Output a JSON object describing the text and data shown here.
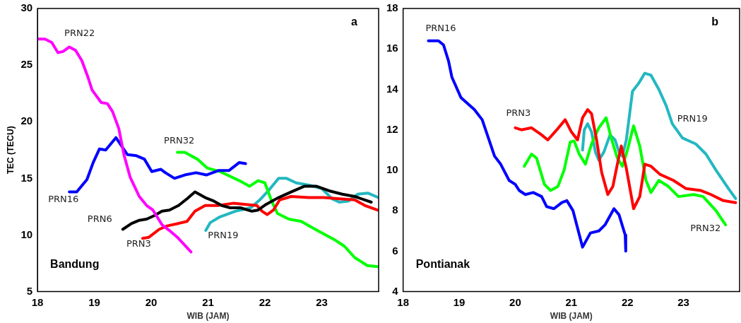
{
  "chart_data": [
    {
      "type": "line",
      "xlabel": "WIB (JAM)",
      "ylabel": "TEC (TECU)",
      "xlim": [
        18,
        24
      ],
      "xticks": [
        18,
        19,
        20,
        21,
        22,
        23
      ],
      "ylim": [
        5,
        30
      ],
      "yticks": [
        5,
        10,
        15,
        20,
        25,
        30
      ],
      "grid": false,
      "legend": false,
      "marker": "none",
      "line_style": "solid",
      "annotations": [
        "a",
        "Bandung"
      ],
      "series": [
        {
          "name": "PRN22",
          "color": "#ff00ff",
          "x": [
            18,
            18.13,
            18.25,
            18.36,
            18.45,
            18.56,
            18.67,
            18.78,
            18.89,
            18.96,
            19.12,
            19.23,
            19.32,
            19.43,
            19.52,
            19.63,
            19.79,
            19.92,
            20.03,
            20.19,
            20.32,
            20.46,
            20.59,
            20.7
          ],
          "values": [
            27.3,
            27.3,
            27,
            26.1,
            26.2,
            26.6,
            26.3,
            25.4,
            23.9,
            22.8,
            21.7,
            21.6,
            20.9,
            19.4,
            17.1,
            15.1,
            13.4,
            12.6,
            12.2,
            10.9,
            10.4,
            9.8,
            9.1,
            8.5
          ]
        },
        {
          "name": "PRN16",
          "color": "#0000ff",
          "x": [
            18.56,
            18.69,
            18.87,
            18.98,
            19.09,
            19.2,
            19.38,
            19.5,
            19.58,
            19.74,
            19.88,
            20.01,
            20.17,
            20.25,
            20.41,
            20.59,
            20.79,
            20.97,
            21.19,
            21.37,
            21.55,
            21.66
          ],
          "values": [
            13.8,
            13.8,
            14.9,
            16.4,
            17.6,
            17.5,
            18.6,
            17.7,
            17.1,
            17,
            16.7,
            15.6,
            15.8,
            15.5,
            15,
            15.3,
            15.5,
            15.3,
            15.7,
            15.7,
            16.4,
            16.3
          ]
        },
        {
          "name": "PRN6",
          "color": "#000000",
          "x": [
            19.5,
            19.65,
            19.79,
            19.92,
            20.05,
            20.19,
            20.32,
            20.48,
            20.63,
            20.77,
            20.95,
            21.1,
            21.24,
            21.39,
            21.57,
            21.77,
            21.88,
            22.02,
            22.24,
            22.46,
            22.69,
            22.91,
            23.13,
            23.36,
            23.58,
            23.87
          ],
          "values": [
            10.5,
            11,
            11.3,
            11.4,
            11.7,
            12.1,
            12.2,
            12.6,
            13.2,
            13.8,
            13.3,
            13,
            12.6,
            12.4,
            12.4,
            12.1,
            12.2,
            12.7,
            13.3,
            13.8,
            14.3,
            14.3,
            13.9,
            13.6,
            13.4,
            12.9
          ]
        },
        {
          "name": "PRN3",
          "color": "#ff0000",
          "x": [
            19.85,
            19.96,
            20.14,
            20.28,
            20.46,
            20.63,
            20.77,
            20.95,
            21.17,
            21.44,
            21.66,
            21.86,
            21.95,
            22.04,
            22.15,
            22.26,
            22.46,
            22.77,
            23.04,
            23.31,
            23.58,
            23.76,
            23.98
          ],
          "values": [
            9.7,
            9.8,
            10.5,
            10.8,
            11,
            11.2,
            12.1,
            12.6,
            12.6,
            12.8,
            12.7,
            12.6,
            12.1,
            11.8,
            12.2,
            13.1,
            13.4,
            13.3,
            13.3,
            13.2,
            13.1,
            12.6,
            12.2
          ]
        },
        {
          "name": "PRN32",
          "color": "#00ff00",
          "x": [
            20.46,
            20.59,
            20.81,
            20.99,
            21.21,
            21.55,
            21.73,
            21.88,
            22,
            22.11,
            22.22,
            22.42,
            22.64,
            22.78,
            22.96,
            23.22,
            23.4,
            23.58,
            23.8,
            23.98
          ],
          "values": [
            17.3,
            17.3,
            16.7,
            15.9,
            15.6,
            14.8,
            14.3,
            14.8,
            14.6,
            13.1,
            11.9,
            11.4,
            11.2,
            10.8,
            10.3,
            9.6,
            9,
            8,
            7.3,
            7.2
          ]
        },
        {
          "name": "PRN19",
          "color": "#22b8c0",
          "x": [
            20.96,
            21.04,
            21.21,
            21.48,
            21.75,
            21.91,
            22.06,
            22.24,
            22.38,
            22.55,
            22.78,
            23,
            23.18,
            23.31,
            23.47,
            23.63,
            23.81,
            24
          ],
          "values": [
            10.4,
            11.1,
            11.6,
            12.1,
            12.4,
            13.1,
            13.9,
            15,
            15,
            14.6,
            14.4,
            14.1,
            13.2,
            12.9,
            13,
            13.6,
            13.7,
            13.3
          ]
        }
      ]
    },
    {
      "type": "line",
      "xlabel": "WIB (JAM)",
      "xlim": [
        18,
        24
      ],
      "xticks": [
        18,
        19,
        20,
        21,
        22,
        23
      ],
      "ylim": [
        4,
        18
      ],
      "yticks": [
        4,
        6,
        8,
        10,
        12,
        14,
        16,
        18
      ],
      "grid": false,
      "legend": false,
      "marker": "none",
      "line_style": "solid",
      "annotations": [
        "b",
        "Pontianak"
      ],
      "series": [
        {
          "name": "PRN16",
          "color": "#0000ff",
          "x": [
            18.45,
            18.63,
            18.72,
            18.81,
            18.87,
            19.03,
            19.27,
            19.41,
            19.52,
            19.63,
            19.74,
            19.89,
            20,
            20.07,
            20.18,
            20.32,
            20.47,
            20.56,
            20.69,
            20.83,
            20.92,
            21.03,
            21.2,
            21.34,
            21.49,
            21.6,
            21.76,
            21.85,
            21.96,
            21.97
          ],
          "values": [
            16.4,
            16.4,
            16.2,
            15.4,
            14.6,
            13.6,
            13,
            12.5,
            11.6,
            10.7,
            10.3,
            9.5,
            9.3,
            9,
            8.8,
            8.9,
            8.7,
            8.2,
            8.1,
            8.4,
            8.5,
            8,
            6.2,
            6.9,
            7,
            7.3,
            8.1,
            7.8,
            6.8,
            6
          ]
        },
        {
          "name": "PRN3",
          "color": "#ff0000",
          "x": [
            20,
            20.11,
            20.29,
            20.47,
            20.58,
            20.74,
            20.89,
            21,
            21.11,
            21.2,
            21.29,
            21.36,
            21.45,
            21.54,
            21.65,
            21.74,
            21.82,
            21.89,
            21.98,
            22.11,
            22.22,
            22.31,
            22.42,
            22.58,
            22.82,
            23.04,
            23.31,
            23.49,
            23.71,
            23.93
          ],
          "values": [
            12.1,
            12,
            12.1,
            11.75,
            11.5,
            12,
            12.5,
            11.9,
            11.5,
            12.6,
            13,
            12.8,
            11.5,
            9.9,
            8.8,
            9.2,
            10.3,
            11.2,
            10.1,
            8.1,
            8.7,
            10.3,
            10.2,
            9.8,
            9.5,
            9.1,
            9,
            8.8,
            8.5,
            8.4
          ]
        },
        {
          "name": "PRN32",
          "color": "#00ff00",
          "x": [
            20.16,
            20.29,
            20.38,
            20.52,
            20.63,
            20.76,
            20.87,
            20.98,
            21.05,
            21.14,
            21.25,
            21.36,
            21.49,
            21.62,
            21.71,
            21.82,
            21.91,
            22,
            22.11,
            22.22,
            22.33,
            22.42,
            22.56,
            22.73,
            22.91,
            23.18,
            23.35,
            23.58,
            23.75
          ],
          "values": [
            10.2,
            10.8,
            10.6,
            9.3,
            9,
            9.2,
            10,
            11.4,
            11.45,
            10.8,
            10.3,
            11.3,
            12.1,
            12.6,
            11.6,
            10.6,
            10.2,
            11,
            12.2,
            11.2,
            9.5,
            8.9,
            9.5,
            9.2,
            8.7,
            8.8,
            8.7,
            8,
            7.3
          ]
        },
        {
          "name": "PRN19",
          "color": "#22b8c0",
          "x": [
            21.2,
            21.23,
            21.29,
            21.36,
            21.43,
            21.49,
            21.58,
            21.69,
            21.78,
            21.85,
            21.91,
            21.98,
            22.09,
            22.2,
            22.31,
            22.42,
            22.56,
            22.69,
            22.8,
            22.98,
            23.22,
            23.4,
            23.58,
            23.8,
            23.93
          ],
          "values": [
            11,
            12,
            12.3,
            11.9,
            10.9,
            10.5,
            10.9,
            11.75,
            11.5,
            10.9,
            10.7,
            11.5,
            13.9,
            14.3,
            14.8,
            14.7,
            14,
            13.2,
            12.3,
            11.6,
            11.3,
            10.8,
            10,
            9.1,
            8.6
          ]
        }
      ]
    }
  ]
}
